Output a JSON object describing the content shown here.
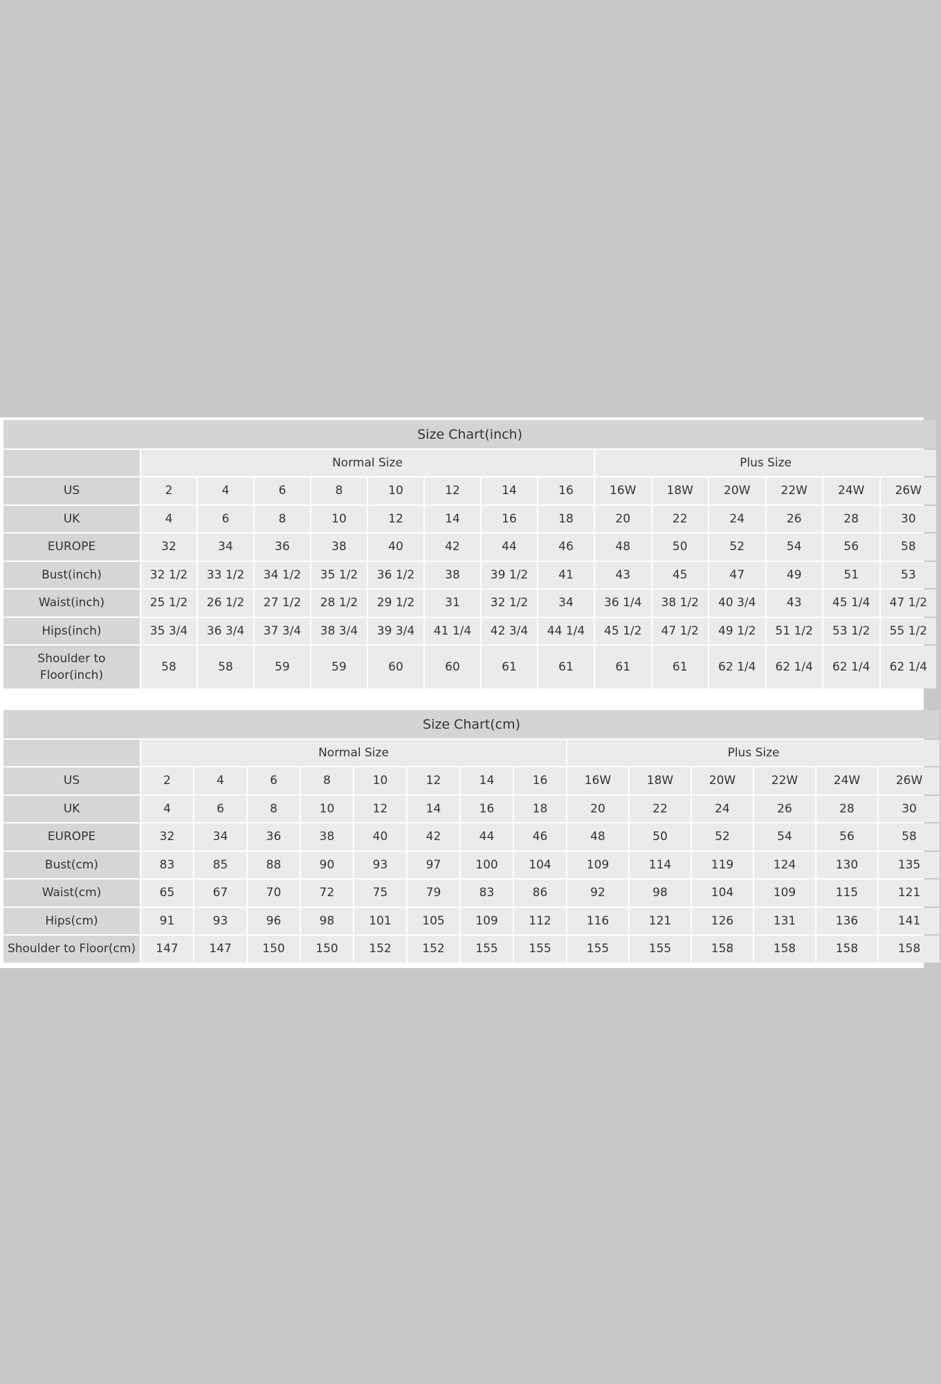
{
  "colors": {
    "page_bg": "#c8c8c8",
    "title_bg": "#d4d4d4",
    "label_bg": "#d6d6d6",
    "cell_bg": "#ebebeb",
    "text": "#333333"
  },
  "tables": [
    {
      "title": "Size Chart(inch)",
      "groups": [
        {
          "label": "Normal Size",
          "span": 8
        },
        {
          "label": "Plus Size",
          "span": 6
        }
      ],
      "rows": [
        {
          "label": "US",
          "values": [
            "2",
            "4",
            "6",
            "8",
            "10",
            "12",
            "14",
            "16",
            "16W",
            "18W",
            "20W",
            "22W",
            "24W",
            "26W"
          ]
        },
        {
          "label": "UK",
          "values": [
            "4",
            "6",
            "8",
            "10",
            "12",
            "14",
            "16",
            "18",
            "20",
            "22",
            "24",
            "26",
            "28",
            "30"
          ]
        },
        {
          "label": "EUROPE",
          "values": [
            "32",
            "34",
            "36",
            "38",
            "40",
            "42",
            "44",
            "46",
            "48",
            "50",
            "52",
            "54",
            "56",
            "58"
          ]
        },
        {
          "label": "Bust(inch)",
          "values": [
            "32 1/2",
            "33 1/2",
            "34 1/2",
            "35 1/2",
            "36 1/2",
            "38",
            "39 1/2",
            "41",
            "43",
            "45",
            "47",
            "49",
            "51",
            "53"
          ]
        },
        {
          "label": "Waist(inch)",
          "values": [
            "25 1/2",
            "26 1/2",
            "27 1/2",
            "28 1/2",
            "29 1/2",
            "31",
            "32 1/2",
            "34",
            "36 1/4",
            "38 1/2",
            "40 3/4",
            "43",
            "45 1/4",
            "47 1/2"
          ]
        },
        {
          "label": "Hips(inch)",
          "values": [
            "35 3/4",
            "36 3/4",
            "37 3/4",
            "38 3/4",
            "39 3/4",
            "41 1/4",
            "42 3/4",
            "44 1/4",
            "45 1/2",
            "47 1/2",
            "49 1/2",
            "51 1/2",
            "53 1/2",
            "55 1/2"
          ]
        },
        {
          "label": "Shoulder to Floor(inch)",
          "values": [
            "58",
            "58",
            "59",
            "59",
            "60",
            "60",
            "61",
            "61",
            "61",
            "61",
            "62 1/4",
            "62 1/4",
            "62 1/4",
            "62 1/4"
          ]
        }
      ]
    },
    {
      "title": "Size Chart(cm)",
      "groups": [
        {
          "label": "Normal Size",
          "span": 8
        },
        {
          "label": "Plus Size",
          "span": 6
        }
      ],
      "rows": [
        {
          "label": "US",
          "values": [
            "2",
            "4",
            "6",
            "8",
            "10",
            "12",
            "14",
            "16",
            "16W",
            "18W",
            "20W",
            "22W",
            "24W",
            "26W"
          ]
        },
        {
          "label": "UK",
          "values": [
            "4",
            "6",
            "8",
            "10",
            "12",
            "14",
            "16",
            "18",
            "20",
            "22",
            "24",
            "26",
            "28",
            "30"
          ]
        },
        {
          "label": "EUROPE",
          "values": [
            "32",
            "34",
            "36",
            "38",
            "40",
            "42",
            "44",
            "46",
            "48",
            "50",
            "52",
            "54",
            "56",
            "58"
          ]
        },
        {
          "label": "Bust(cm)",
          "values": [
            "83",
            "85",
            "88",
            "90",
            "93",
            "97",
            "100",
            "104",
            "109",
            "114",
            "119",
            "124",
            "130",
            "135"
          ]
        },
        {
          "label": "Waist(cm)",
          "values": [
            "65",
            "67",
            "70",
            "72",
            "75",
            "79",
            "83",
            "86",
            "92",
            "98",
            "104",
            "109",
            "115",
            "121"
          ]
        },
        {
          "label": "Hips(cm)",
          "values": [
            "91",
            "93",
            "96",
            "98",
            "101",
            "105",
            "109",
            "112",
            "116",
            "121",
            "126",
            "131",
            "136",
            "141"
          ]
        },
        {
          "label": "Shoulder to Floor(cm)",
          "values": [
            "147",
            "147",
            "150",
            "150",
            "152",
            "152",
            "155",
            "155",
            "155",
            "155",
            "158",
            "158",
            "158",
            "158"
          ]
        }
      ]
    }
  ]
}
